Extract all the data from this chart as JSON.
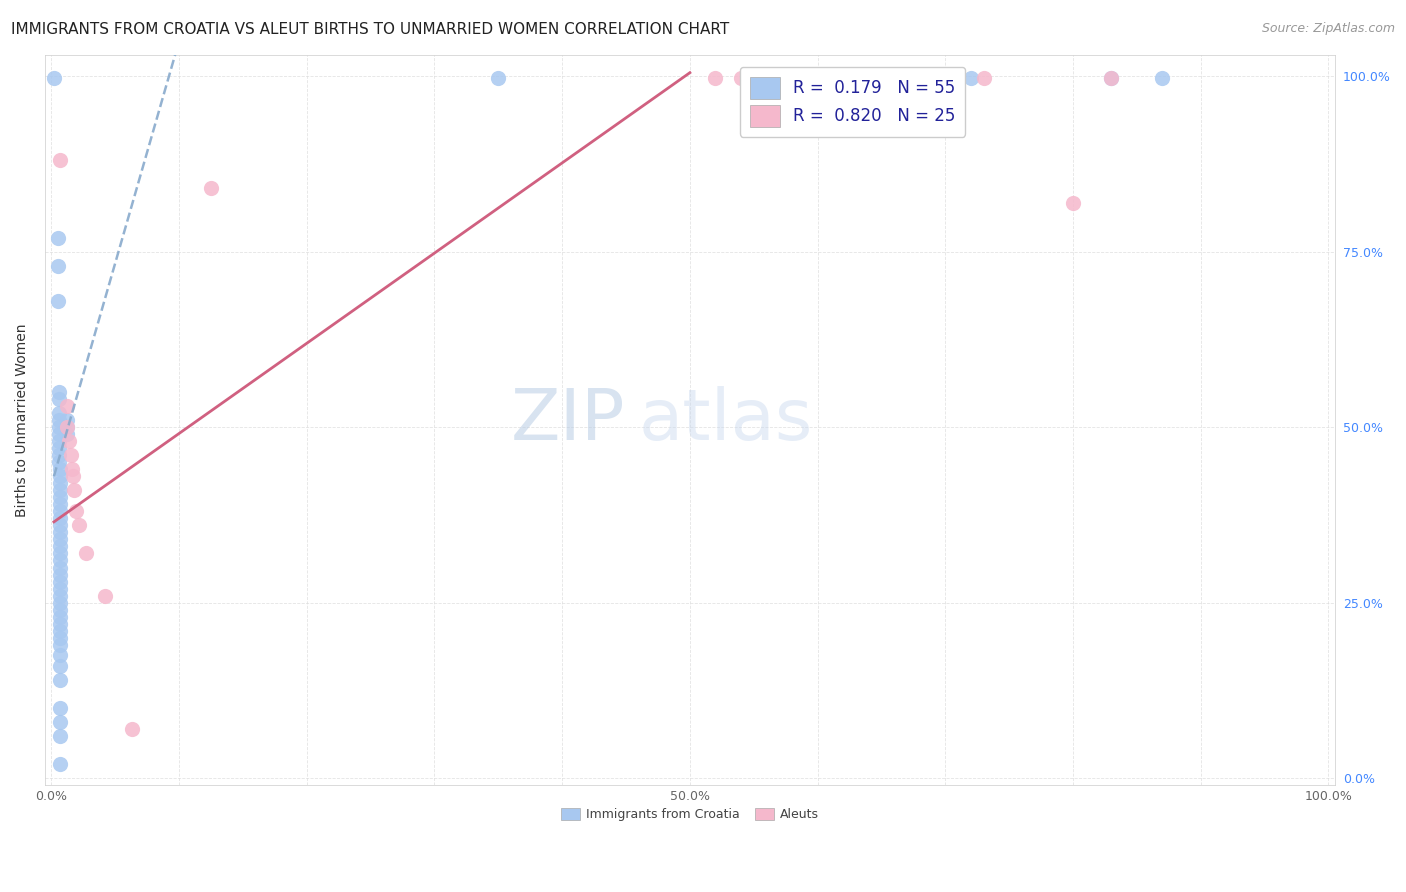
{
  "title": "IMMIGRANTS FROM CROATIA VS ALEUT BIRTHS TO UNMARRIED WOMEN CORRELATION CHART",
  "source": "Source: ZipAtlas.com",
  "ylabel": "Births to Unmarried Women",
  "legend_r1_r": "0.179",
  "legend_r1_n": "55",
  "legend_r2_r": "0.820",
  "legend_r2_n": "25",
  "watermark_zip": "ZIP",
  "watermark_atlas": "atlas",
  "blue_scatter_color": "#a8c8f0",
  "blue_scatter_edge": "#7aaad0",
  "pink_scatter_color": "#f5b8cc",
  "pink_scatter_edge": "#e090a8",
  "blue_line_color": "#88aacc",
  "pink_line_color": "#d06080",
  "right_tick_color": "#4488ff",
  "blue_dots": [
    [
      0.002,
      0.998
    ],
    [
      0.005,
      0.77
    ],
    [
      0.005,
      0.73
    ],
    [
      0.005,
      0.68
    ],
    [
      0.006,
      0.55
    ],
    [
      0.006,
      0.54
    ],
    [
      0.006,
      0.52
    ],
    [
      0.006,
      0.51
    ],
    [
      0.006,
      0.5
    ],
    [
      0.006,
      0.49
    ],
    [
      0.006,
      0.48
    ],
    [
      0.006,
      0.47
    ],
    [
      0.006,
      0.46
    ],
    [
      0.006,
      0.45
    ],
    [
      0.007,
      0.44
    ],
    [
      0.007,
      0.43
    ],
    [
      0.007,
      0.42
    ],
    [
      0.007,
      0.41
    ],
    [
      0.007,
      0.4
    ],
    [
      0.007,
      0.39
    ],
    [
      0.007,
      0.38
    ],
    [
      0.007,
      0.37
    ],
    [
      0.007,
      0.36
    ],
    [
      0.007,
      0.35
    ],
    [
      0.007,
      0.34
    ],
    [
      0.007,
      0.33
    ],
    [
      0.007,
      0.32
    ],
    [
      0.007,
      0.31
    ],
    [
      0.007,
      0.3
    ],
    [
      0.007,
      0.29
    ],
    [
      0.007,
      0.28
    ],
    [
      0.007,
      0.27
    ],
    [
      0.007,
      0.26
    ],
    [
      0.007,
      0.25
    ],
    [
      0.007,
      0.24
    ],
    [
      0.007,
      0.23
    ],
    [
      0.007,
      0.22
    ],
    [
      0.007,
      0.21
    ],
    [
      0.007,
      0.2
    ],
    [
      0.007,
      0.19
    ],
    [
      0.007,
      0.175
    ],
    [
      0.007,
      0.16
    ],
    [
      0.007,
      0.14
    ],
    [
      0.007,
      0.1
    ],
    [
      0.007,
      0.08
    ],
    [
      0.007,
      0.06
    ],
    [
      0.007,
      0.02
    ],
    [
      0.012,
      0.51
    ],
    [
      0.012,
      0.5
    ],
    [
      0.012,
      0.49
    ],
    [
      0.35,
      0.998
    ],
    [
      0.62,
      0.998
    ],
    [
      0.72,
      0.998
    ],
    [
      0.83,
      0.998
    ],
    [
      0.87,
      0.998
    ]
  ],
  "pink_dots": [
    [
      0.007,
      0.88
    ],
    [
      0.012,
      0.53
    ],
    [
      0.012,
      0.5
    ],
    [
      0.014,
      0.48
    ],
    [
      0.015,
      0.46
    ],
    [
      0.016,
      0.44
    ],
    [
      0.017,
      0.43
    ],
    [
      0.018,
      0.41
    ],
    [
      0.019,
      0.38
    ],
    [
      0.022,
      0.36
    ],
    [
      0.027,
      0.32
    ],
    [
      0.042,
      0.26
    ],
    [
      0.063,
      0.07
    ],
    [
      0.125,
      0.84
    ],
    [
      0.52,
      0.998
    ],
    [
      0.54,
      0.998
    ],
    [
      0.56,
      0.998
    ],
    [
      0.57,
      0.998
    ],
    [
      0.6,
      0.998
    ],
    [
      0.65,
      0.998
    ],
    [
      0.68,
      0.998
    ],
    [
      0.7,
      0.998
    ],
    [
      0.73,
      0.998
    ],
    [
      0.8,
      0.82
    ],
    [
      0.83,
      0.998
    ]
  ],
  "xlim": [
    -0.005,
    1.005
  ],
  "ylim": [
    -0.01,
    1.03
  ],
  "xticks": [
    0.0,
    0.1,
    0.2,
    0.3,
    0.4,
    0.5,
    0.6,
    0.7,
    0.8,
    0.9,
    1.0
  ],
  "xticklabels": [
    "0.0%",
    "",
    "",
    "",
    "",
    "50.0%",
    "",
    "",
    "",
    "",
    "100.0%"
  ],
  "yticks": [
    0.0,
    0.25,
    0.5,
    0.75,
    1.0
  ],
  "yticklabels_right": [
    "0.0%",
    "25.0%",
    "50.0%",
    "75.0%",
    "100.0%"
  ],
  "blue_trend": [
    0.002,
    0.43,
    0.1,
    1.05
  ],
  "pink_trend": [
    0.002,
    0.365,
    0.5,
    1.005
  ],
  "title_fontsize": 11,
  "source_fontsize": 9,
  "ylabel_fontsize": 10,
  "tick_fontsize": 9,
  "legend_fontsize": 12,
  "dot_size": 120
}
